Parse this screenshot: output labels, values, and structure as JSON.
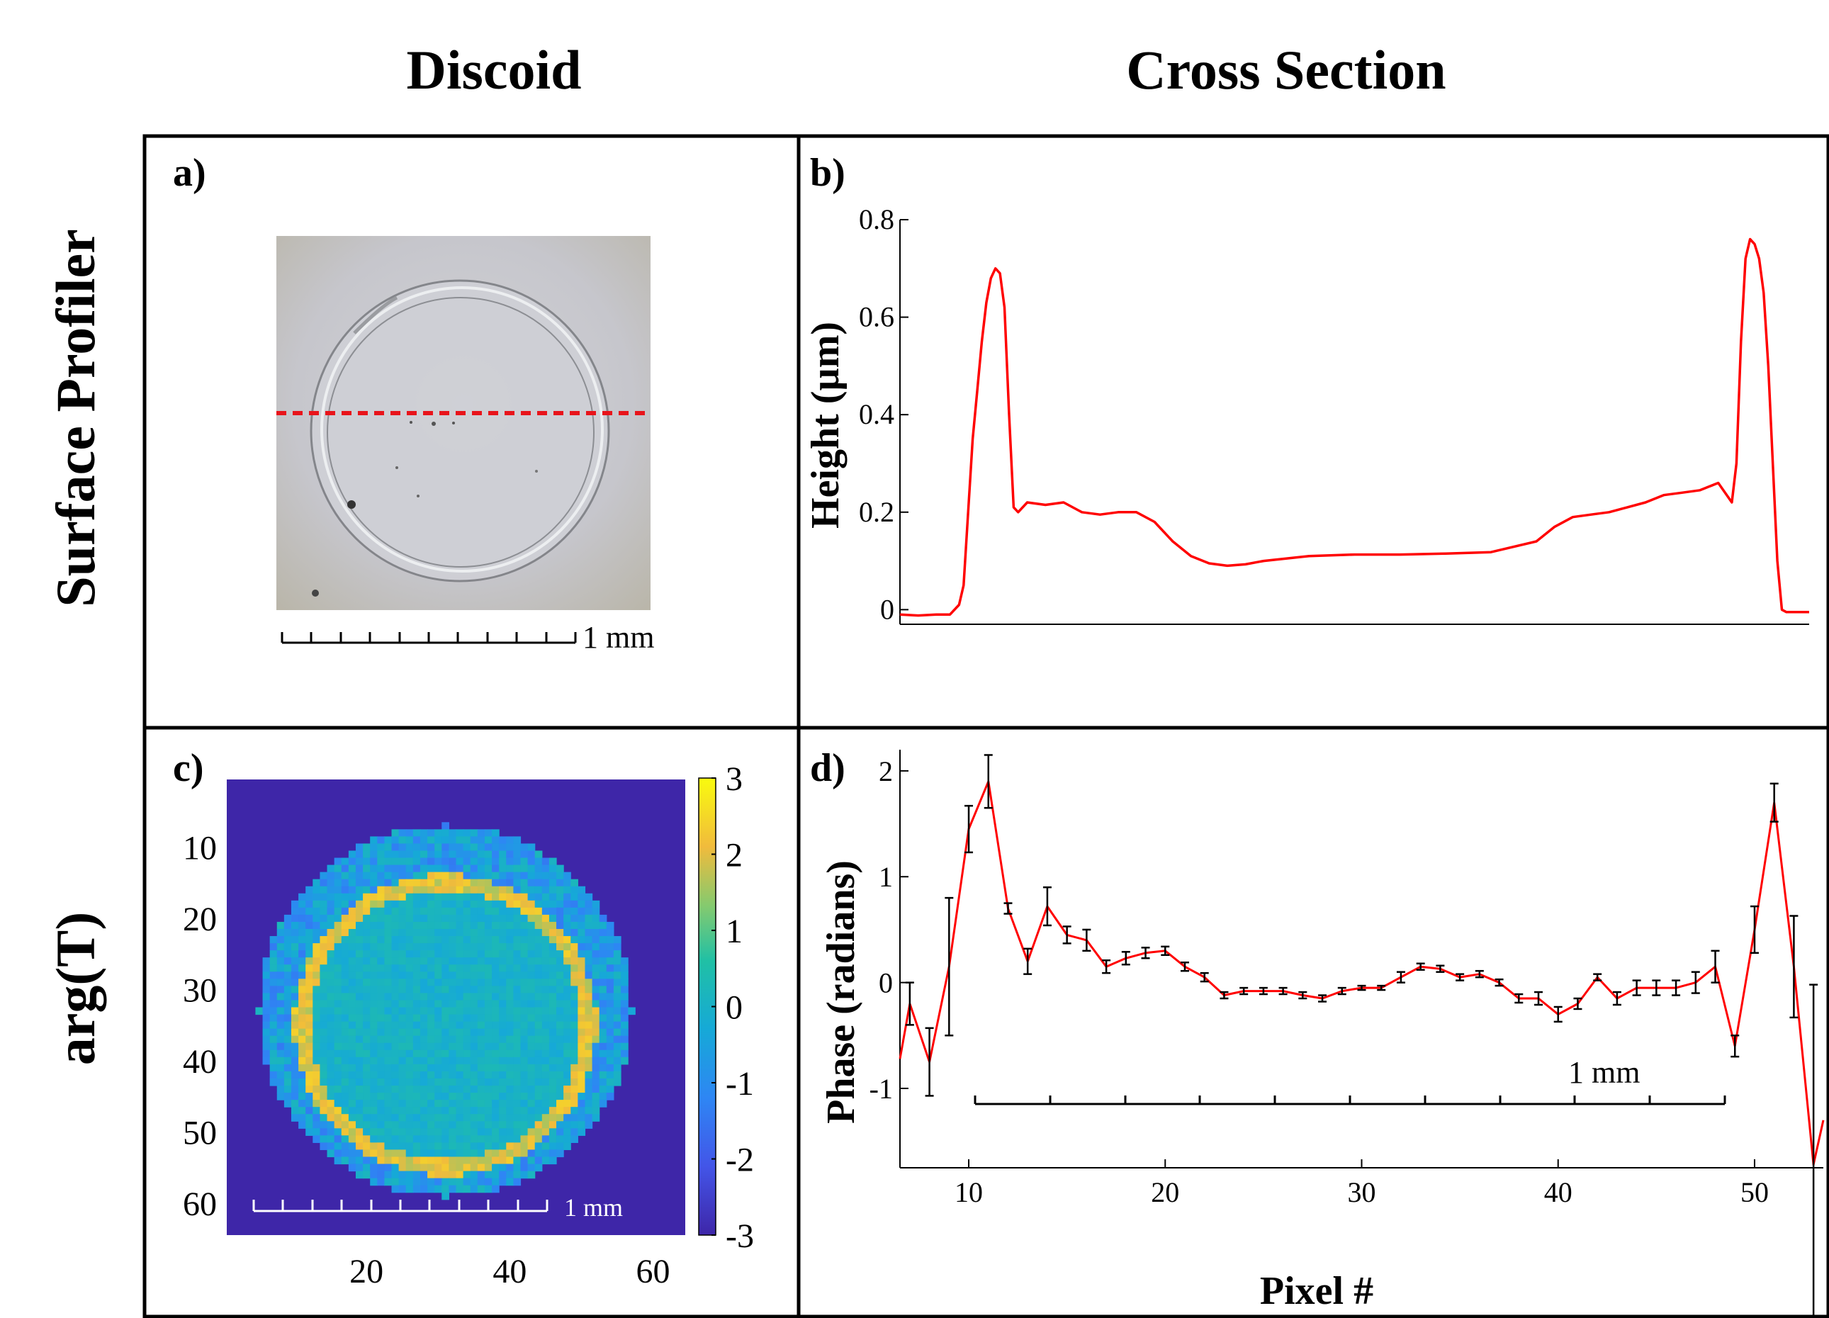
{
  "columns": {
    "left": "Discoid",
    "right": "Cross Section"
  },
  "rows": {
    "top": "Surface Profiler",
    "bottom": "arg(T)"
  },
  "panels": {
    "a": "a)",
    "b": "b)",
    "c": "c)",
    "d": "d)"
  },
  "scale_bars": {
    "a": "1 mm",
    "c": "1 mm",
    "d": "1 mm"
  },
  "colors": {
    "line": "#ff0000",
    "error_bar": "#000000",
    "dashed_line": "#e8141b",
    "heatmap_background": "#3e26a8",
    "colormap_low": "#3e26a8",
    "colormap_high": "#f9fb0e"
  },
  "chart_data": [
    {
      "panel": "b",
      "type": "line",
      "title": "",
      "xlabel": "",
      "ylabel": "Height (µm)",
      "ylim": [
        -0.03,
        0.8
      ],
      "yticks": [
        0,
        0.2,
        0.4,
        0.6,
        0.8
      ],
      "ytick_labels": [
        "0",
        "0.2",
        "0.4",
        "0.6",
        "0.8"
      ],
      "x_units": "position along dashed line (0–100, relative)",
      "xlim": [
        0,
        100
      ],
      "x": [
        0,
        2,
        4,
        5.5,
        6.5,
        7,
        7.5,
        8,
        8.5,
        9,
        9.5,
        10,
        10.5,
        11,
        11.5,
        12,
        12.5,
        13,
        14,
        16,
        18,
        20,
        22,
        24,
        26,
        28,
        30,
        32,
        34,
        36,
        38,
        40,
        45,
        50,
        55,
        60,
        65,
        70,
        72,
        74,
        76,
        78,
        80,
        82,
        84,
        86,
        88,
        90,
        91.5,
        92,
        92.5,
        93,
        93.5,
        94,
        94.5,
        95,
        95.5,
        96,
        96.5,
        97,
        97.5,
        98,
        99,
        100
      ],
      "y": [
        -0.01,
        -0.012,
        -0.01,
        -0.01,
        0.01,
        0.05,
        0.2,
        0.35,
        0.45,
        0.55,
        0.63,
        0.68,
        0.7,
        0.69,
        0.62,
        0.4,
        0.21,
        0.2,
        0.22,
        0.215,
        0.22,
        0.2,
        0.195,
        0.2,
        0.2,
        0.18,
        0.14,
        0.11,
        0.095,
        0.09,
        0.093,
        0.1,
        0.11,
        0.113,
        0.113,
        0.115,
        0.118,
        0.14,
        0.17,
        0.19,
        0.195,
        0.2,
        0.21,
        0.22,
        0.235,
        0.24,
        0.245,
        0.26,
        0.22,
        0.3,
        0.55,
        0.72,
        0.76,
        0.75,
        0.72,
        0.65,
        0.5,
        0.3,
        0.1,
        0.0,
        -0.005,
        -0.005,
        -0.005,
        -0.005
      ]
    },
    {
      "panel": "c",
      "type": "heatmap",
      "title": "",
      "xlim": [
        0.5,
        64.5
      ],
      "ylim": [
        0.5,
        64.5
      ],
      "xticks": [
        20,
        40,
        60
      ],
      "xtick_labels": [
        "20",
        "40",
        "60"
      ],
      "yticks": [
        10,
        20,
        30,
        40,
        50,
        60
      ],
      "ytick_labels": [
        "10",
        "20",
        "30",
        "40",
        "50",
        "60"
      ],
      "colorbar": {
        "range": [
          -3,
          3
        ],
        "ticks": [
          3,
          2,
          1,
          0,
          -1,
          -2,
          -3
        ],
        "tick_labels": [
          "3",
          "2",
          "1",
          "0",
          "-1",
          "-2",
          "-3"
        ]
      },
      "description_values": {
        "disc_center": [
          31,
          33
        ],
        "disc_radius": 26,
        "ring_center": [
          31,
          35
        ],
        "ring_radius": 20,
        "background_value": -3,
        "outer_region_value": -0.6,
        "inner_region_value": 0.0,
        "ring_value": 2.0
      }
    },
    {
      "panel": "d",
      "type": "line",
      "title": "",
      "xlabel": "Pixel #",
      "ylabel": "Phase (radians)",
      "xlim": [
        6.5,
        53.5
      ],
      "ylim": [
        -1.75,
        2.2
      ],
      "xticks": [
        10,
        20,
        30,
        40,
        50
      ],
      "xtick_labels": [
        "10",
        "20",
        "30",
        "40",
        "50"
      ],
      "yticks": [
        -1,
        0,
        1,
        2
      ],
      "ytick_labels": [
        "-1",
        "0",
        "1",
        "2"
      ],
      "x": [
        6.5,
        7,
        8,
        9,
        10,
        11,
        12,
        13,
        14,
        15,
        16,
        17,
        18,
        19,
        20,
        21,
        22,
        23,
        24,
        25,
        26,
        27,
        28,
        29,
        30,
        31,
        32,
        33,
        34,
        35,
        36,
        37,
        38,
        39,
        40,
        41,
        42,
        43,
        44,
        45,
        46,
        47,
        48,
        49,
        50,
        51,
        52,
        53,
        53.5
      ],
      "y": [
        -0.72,
        -0.2,
        -0.75,
        0.15,
        1.45,
        1.9,
        0.7,
        0.2,
        0.72,
        0.45,
        0.4,
        0.15,
        0.23,
        0.28,
        0.3,
        0.15,
        0.05,
        -0.12,
        -0.08,
        -0.08,
        -0.08,
        -0.12,
        -0.15,
        -0.08,
        -0.05,
        -0.05,
        0.05,
        0.15,
        0.13,
        0.05,
        0.08,
        0.0,
        -0.15,
        -0.15,
        -0.3,
        -0.2,
        0.05,
        -0.15,
        -0.05,
        -0.05,
        -0.05,
        0.0,
        0.15,
        -0.6,
        0.5,
        1.7,
        0.15,
        -1.72,
        -1.3
      ],
      "error": [
        null,
        0.2,
        0.32,
        0.65,
        0.22,
        0.25,
        0.05,
        0.12,
        0.18,
        0.08,
        0.1,
        0.06,
        0.06,
        0.05,
        0.04,
        0.04,
        0.04,
        0.03,
        0.03,
        0.03,
        0.03,
        0.03,
        0.03,
        0.03,
        0.02,
        0.02,
        0.05,
        0.03,
        0.03,
        0.03,
        0.03,
        0.03,
        0.04,
        0.06,
        0.07,
        0.05,
        0.03,
        0.06,
        0.07,
        0.07,
        0.07,
        0.1,
        0.15,
        0.1,
        0.22,
        0.18,
        0.48,
        1.7,
        null
      ]
    }
  ]
}
